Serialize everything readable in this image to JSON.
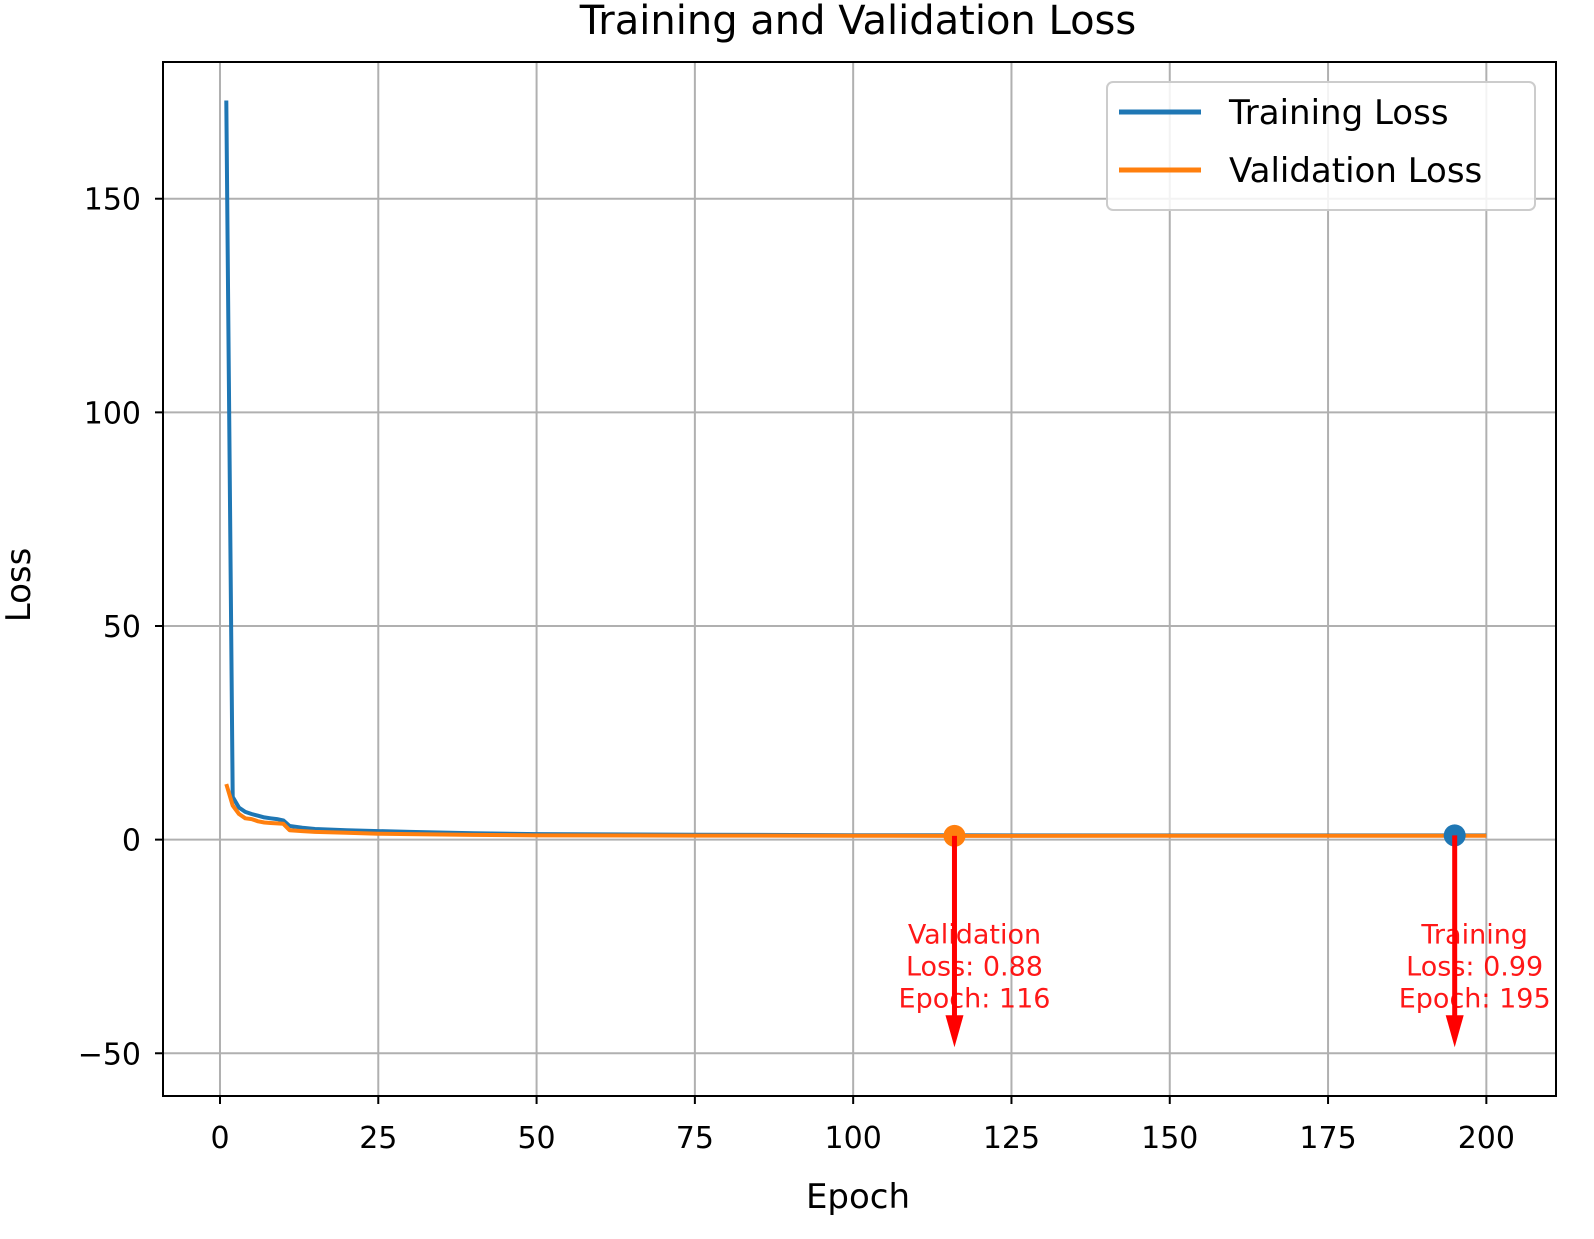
{
  "chart_data": {
    "type": "line",
    "title": "Training and Validation Loss",
    "xlabel": "Epoch",
    "ylabel": "Loss",
    "xlim": [
      -9,
      211
    ],
    "ylim": [
      -60,
      182
    ],
    "xticks": [
      0,
      25,
      50,
      75,
      100,
      125,
      150,
      175,
      200
    ],
    "yticks": [
      -50,
      0,
      50,
      100,
      150
    ],
    "ytick_labels": [
      "−50",
      "0",
      "50",
      "100",
      "150"
    ],
    "grid": true,
    "legend_position": "top-right",
    "series": [
      {
        "name": "Training Loss",
        "color": "#1f77b4",
        "x": [
          1,
          2,
          3,
          4,
          5,
          6,
          7,
          8,
          9,
          10,
          11,
          13,
          15,
          20,
          25,
          30,
          40,
          50,
          75,
          100,
          116,
          150,
          195,
          200
        ],
        "y": [
          173,
          10,
          7.5,
          6.5,
          6,
          5.6,
          5.2,
          5,
          4.8,
          4.5,
          3.2,
          2.8,
          2.5,
          2.2,
          2,
          1.8,
          1.5,
          1.3,
          1.15,
          1.05,
          1.02,
          1.0,
          0.99,
          1.0
        ]
      },
      {
        "name": "Validation Loss",
        "color": "#ff7f0e",
        "x": [
          1,
          2,
          3,
          4,
          5,
          6,
          7,
          8,
          9,
          10,
          11,
          13,
          15,
          20,
          25,
          30,
          40,
          50,
          75,
          100,
          116,
          150,
          195,
          200
        ],
        "y": [
          13,
          8,
          6,
          5,
          4.8,
          4.3,
          4,
          3.9,
          3.8,
          3.7,
          2.2,
          2,
          1.8,
          1.6,
          1.4,
          1.3,
          1.1,
          1.0,
          0.95,
          0.92,
          0.88,
          0.9,
          0.92,
          0.93
        ]
      }
    ],
    "annotations": [
      {
        "lines": [
          "Validation",
          "Loss: 0.88",
          "Epoch: 116"
        ],
        "point": [
          116,
          0.88
        ],
        "arrow_end": [
          116,
          -50
        ],
        "marker_color": "#ff7f0e",
        "text_color": "#ff0000"
      },
      {
        "lines": [
          "Training",
          "Loss: 0.99",
          "Epoch: 195"
        ],
        "point": [
          195,
          0.99
        ],
        "arrow_end": [
          195,
          -50
        ],
        "marker_color": "#1f77b4",
        "text_color": "#ff0000"
      }
    ]
  }
}
